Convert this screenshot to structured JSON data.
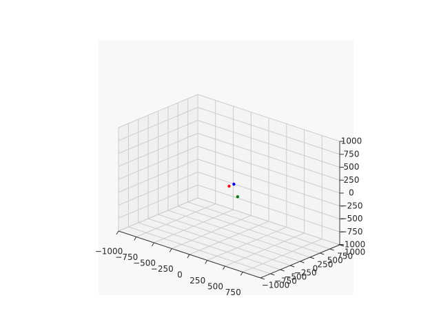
{
  "chart_data": {
    "type": "scatter",
    "projection": "3d",
    "title": "",
    "xlabel": "",
    "ylabel": "",
    "zlabel": "",
    "xlim": [
      -1000,
      1000
    ],
    "ylim": [
      -1000,
      1000
    ],
    "zlim": [
      -1000,
      1000
    ],
    "grid": true,
    "pane_color": "#f8f8f8",
    "grid_color": "#cccccc",
    "x_ticks": [
      "−1000",
      "−750",
      "−500",
      "−250",
      "0",
      "250",
      "500",
      "750"
    ],
    "y_ticks": [
      "−1000",
      "−750",
      "−500",
      "−250",
      "0",
      "250",
      "500",
      "750",
      "1000"
    ],
    "z_ticks": [
      "−1000",
      "−750",
      "−500",
      "−250",
      "0",
      "250",
      "500",
      "750",
      "1000"
    ],
    "points": [
      {
        "x": 0,
        "y": 0,
        "z": 0,
        "color": "#ff0000"
      },
      {
        "x": 0,
        "y": 120,
        "z": 0,
        "color": "#0000ff"
      },
      {
        "x": 120,
        "y": 0,
        "z": -150,
        "color": "#008000"
      }
    ]
  }
}
